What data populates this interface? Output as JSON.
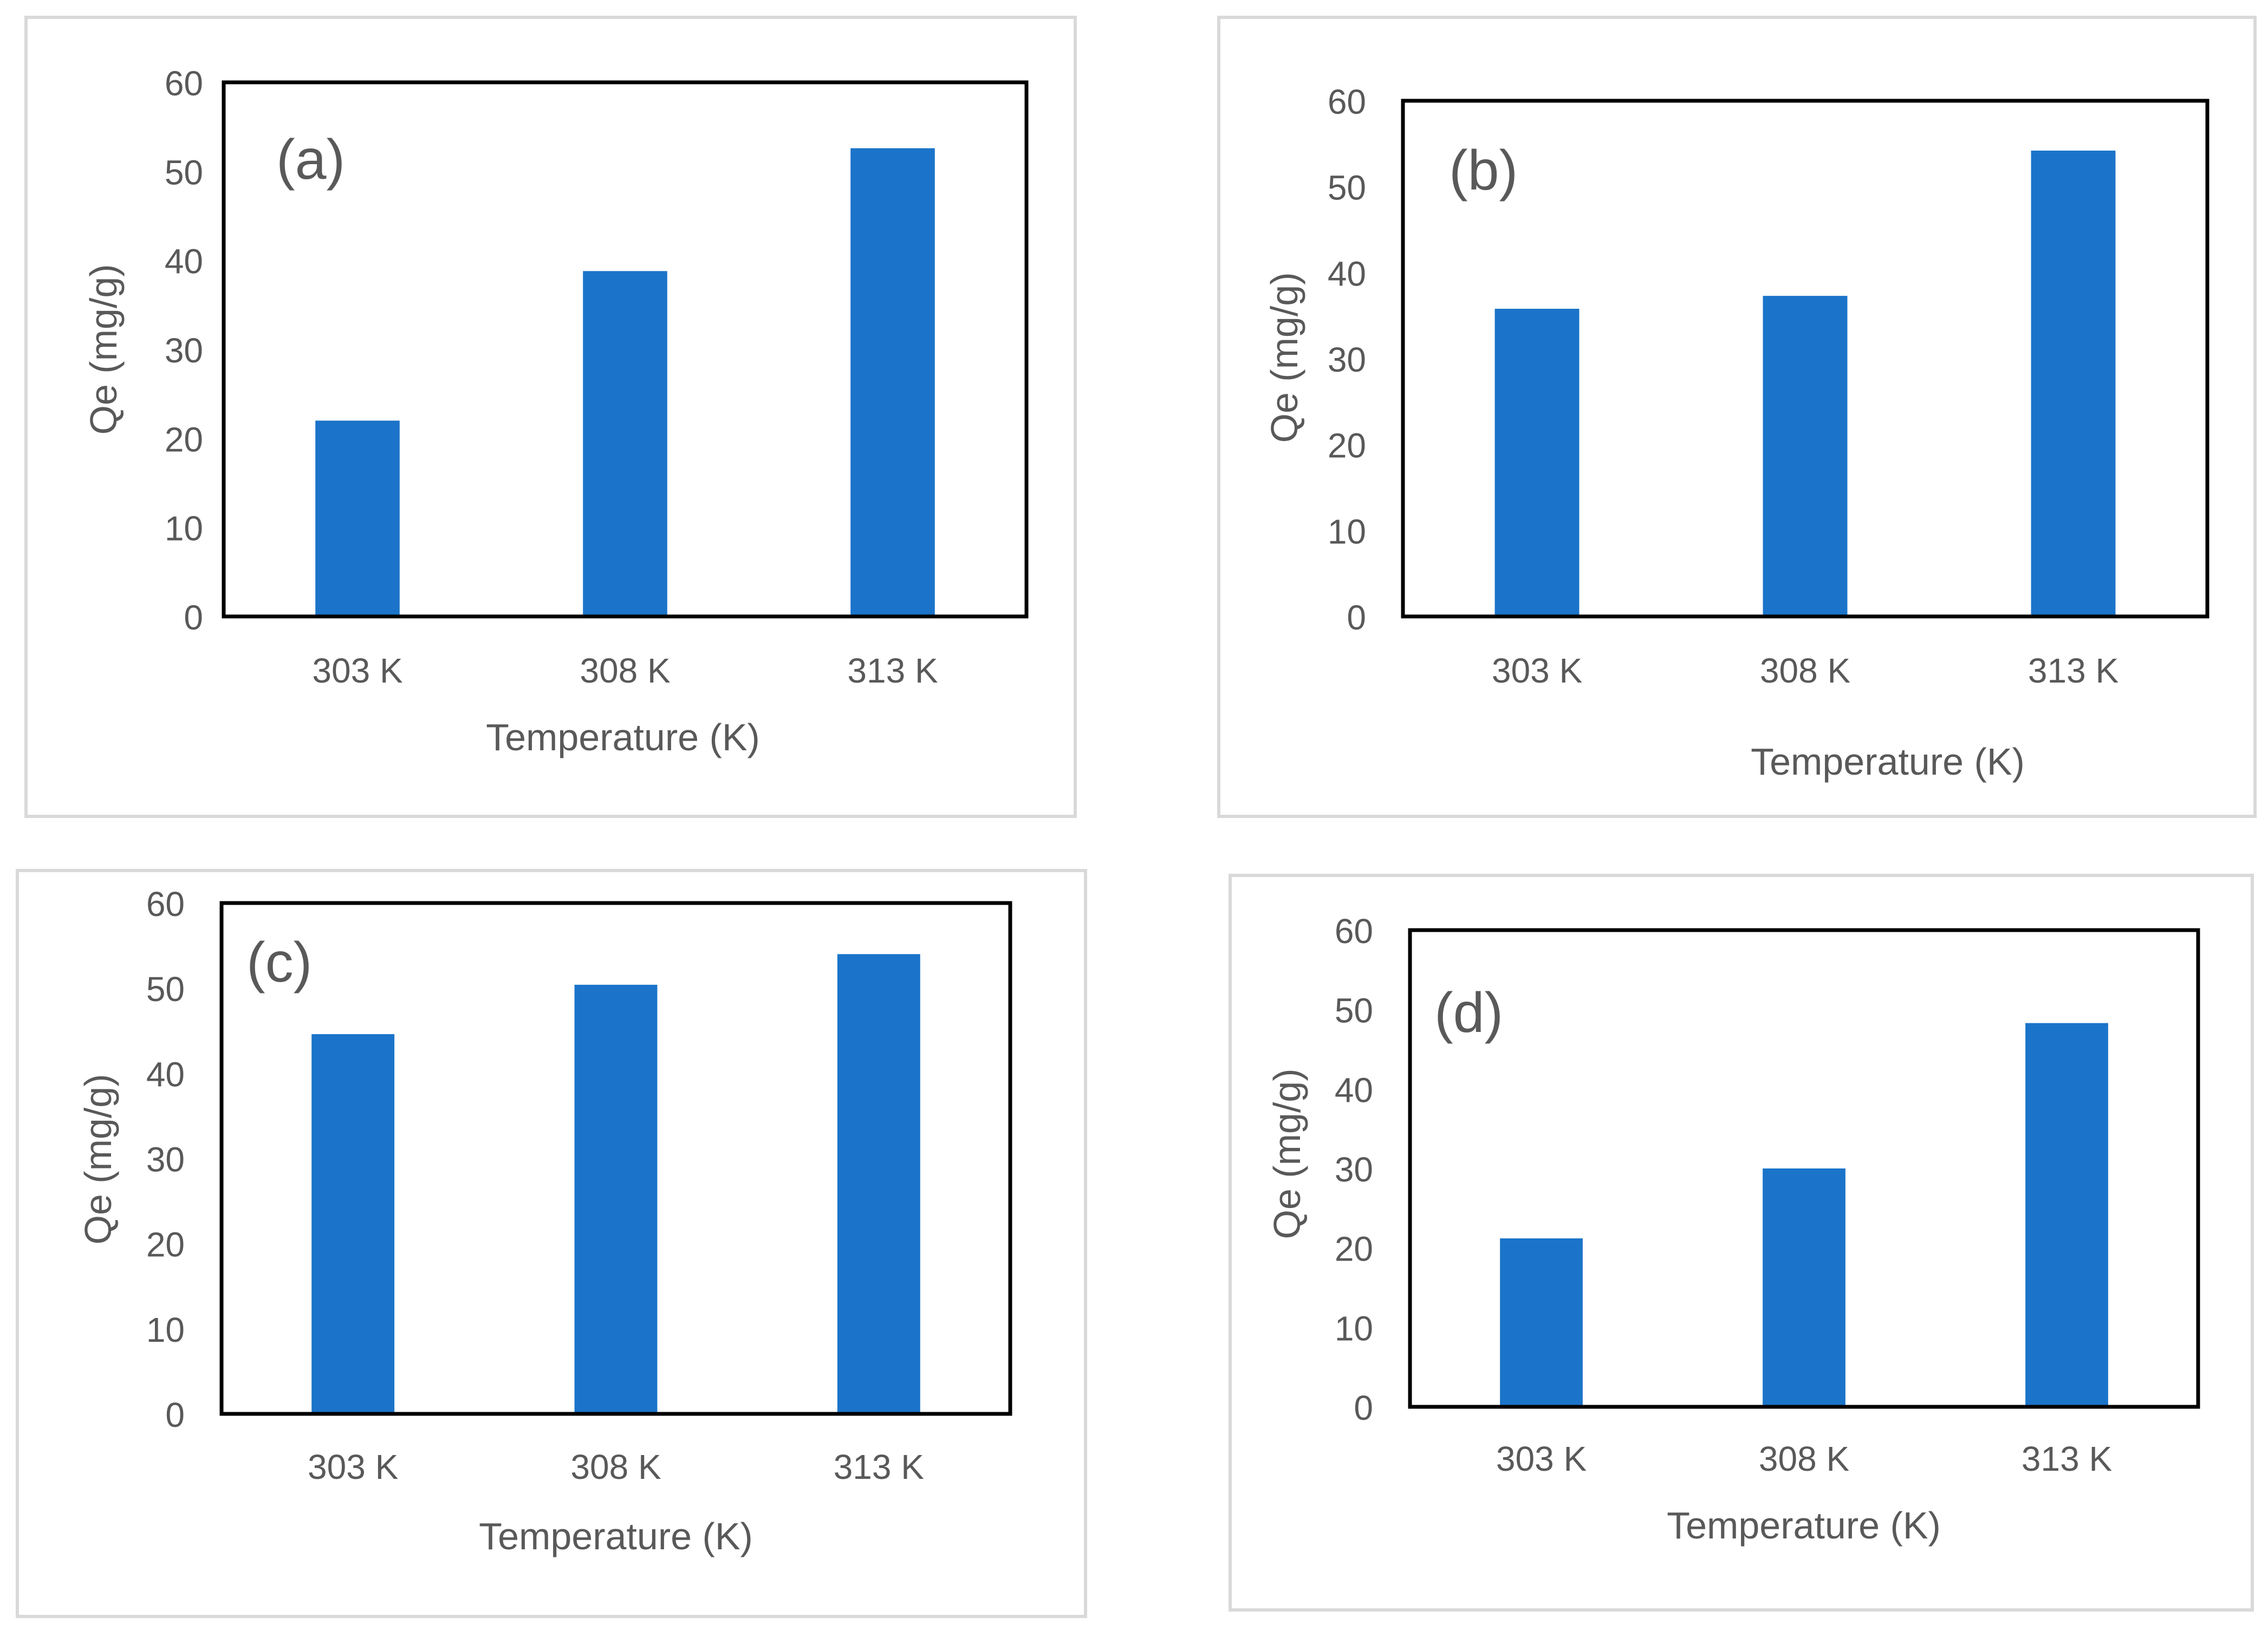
{
  "charts": [
    {
      "type": "bar",
      "panel_label": "(a)",
      "categories": [
        "303 K",
        "308 K",
        "313 K"
      ],
      "values": [
        22,
        38.8,
        52.6
      ],
      "xlabel": "Temperature (K)",
      "ylabel": "Qe (mg/g)",
      "ylim": [
        0,
        60
      ],
      "yticks": [
        "0",
        "10",
        "20",
        "30",
        "40",
        "50",
        "60"
      ],
      "bar_color": "#1b74c9",
      "grid": false
    },
    {
      "type": "bar",
      "panel_label": "(b)",
      "categories": [
        "303 K",
        "308 K",
        "313 K"
      ],
      "values": [
        35.8,
        37.3,
        54.2
      ],
      "xlabel": "Temperature (K)",
      "ylabel": "Qe (mg/g)",
      "ylim": [
        0,
        60
      ],
      "yticks": [
        "0",
        "10",
        "20",
        "30",
        "40",
        "50",
        "60"
      ],
      "bar_color": "#1b74c9",
      "grid": false
    },
    {
      "type": "bar",
      "panel_label": "(c)",
      "categories": [
        "303 K",
        "308 K",
        "313 K"
      ],
      "values": [
        44.6,
        50.4,
        54
      ],
      "xlabel": "Temperature (K)",
      "ylabel": "Qe (mg/g)",
      "ylim": [
        0,
        60
      ],
      "yticks": [
        "0",
        "10",
        "20",
        "30",
        "40",
        "50",
        "60"
      ],
      "bar_color": "#1b74c9",
      "grid": false
    },
    {
      "type": "bar",
      "panel_label": "(d)",
      "categories": [
        "303 K",
        "308 K",
        "313 K"
      ],
      "values": [
        21.2,
        30,
        48.3
      ],
      "xlabel": "Temperature (K)",
      "ylabel": "Qe (mg/g)",
      "ylim": [
        0,
        60
      ],
      "yticks": [
        "0",
        "10",
        "20",
        "30",
        "40",
        "50",
        "60"
      ],
      "bar_color": "#1b74c9",
      "grid": false
    }
  ],
  "chart_data": [
    {
      "type": "bar",
      "title": "(a)",
      "categories": [
        "303 K",
        "308 K",
        "313 K"
      ],
      "values": [
        22,
        38.8,
        52.6
      ],
      "xlabel": "Temperature (K)",
      "ylabel": "Qe (mg/g)",
      "ylim": [
        0,
        60
      ]
    },
    {
      "type": "bar",
      "title": "(b)",
      "categories": [
        "303 K",
        "308 K",
        "313 K"
      ],
      "values": [
        35.8,
        37.3,
        54.2
      ],
      "xlabel": "Temperature (K)",
      "ylabel": "Qe (mg/g)",
      "ylim": [
        0,
        60
      ]
    },
    {
      "type": "bar",
      "title": "(c)",
      "categories": [
        "303 K",
        "308 K",
        "313 K"
      ],
      "values": [
        44.6,
        50.4,
        54
      ],
      "xlabel": "Temperature (K)",
      "ylabel": "Qe (mg/g)",
      "ylim": [
        0,
        60
      ]
    },
    {
      "type": "bar",
      "title": "(d)",
      "categories": [
        "303 K",
        "308 K",
        "313 K"
      ],
      "values": [
        21.2,
        30,
        48.3
      ],
      "xlabel": "Temperature (K)",
      "ylabel": "Qe (mg/g)",
      "ylim": [
        0,
        60
      ]
    }
  ]
}
